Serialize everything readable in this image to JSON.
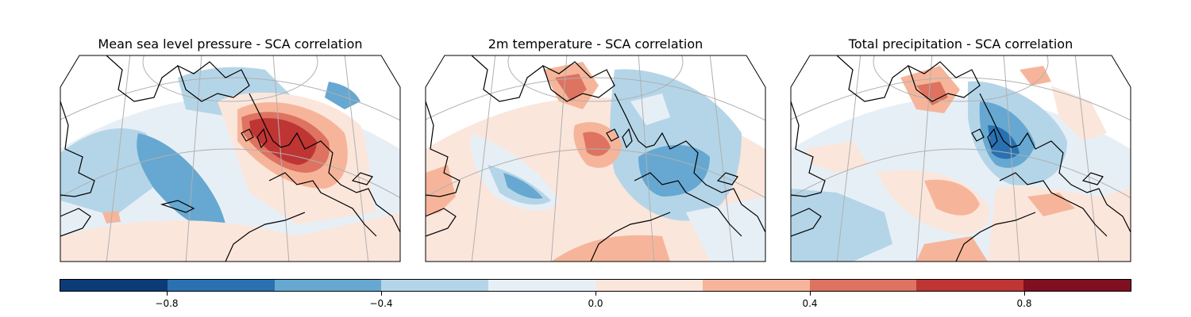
{
  "panels": [
    {
      "title": "Mean sea level pressure - SCA correlation",
      "field": "msl"
    },
    {
      "title": "2m temperature - SCA correlation",
      "field": "t2m"
    },
    {
      "title": "Total precipitation - SCA correlation",
      "field": "tp"
    }
  ],
  "colorbar": {
    "levels": [
      -1.0,
      -0.8,
      -0.6,
      -0.4,
      -0.2,
      0.0,
      0.2,
      0.4,
      0.6,
      0.8,
      1.0
    ],
    "colors": [
      "#0b3c78",
      "#2a71b2",
      "#66a8d1",
      "#b4d5e8",
      "#e7eff6",
      "#fbe6dc",
      "#f6b59a",
      "#dd7360",
      "#bf3534",
      "#800f22"
    ],
    "ticks": [
      -0.8,
      -0.4,
      0.0,
      0.4,
      0.8
    ],
    "tick_labels": [
      "−0.8",
      "−0.4",
      "0.0",
      "0.4",
      "0.8"
    ]
  },
  "icons": {
    "map": "conic-projection-map",
    "coastline": "coastline-outline"
  }
}
